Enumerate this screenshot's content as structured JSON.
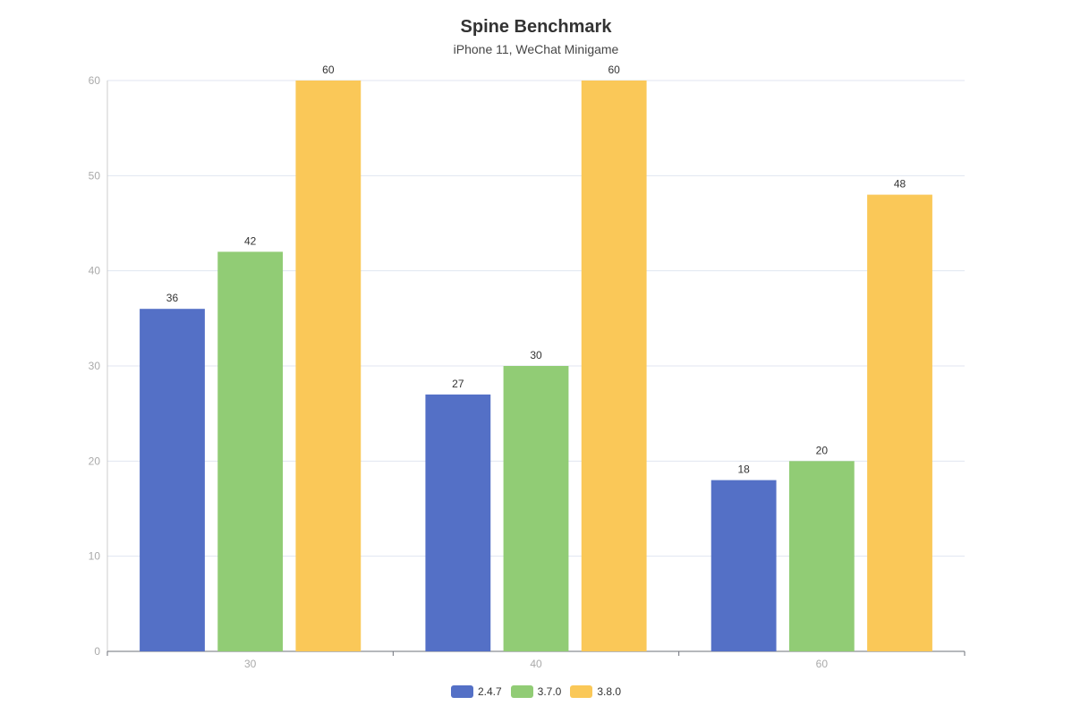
{
  "chart_data": {
    "type": "bar",
    "title": "Spine Benchmark",
    "subtitle": "iPhone 11, WeChat Minigame",
    "categories": [
      "30",
      "40",
      "60"
    ],
    "series": [
      {
        "name": "2.4.7",
        "values": [
          36,
          27,
          18
        ],
        "color": "#5470c6"
      },
      {
        "name": "3.7.0",
        "values": [
          42,
          30,
          20
        ],
        "color": "#91cc75"
      },
      {
        "name": "3.8.0",
        "values": [
          60,
          60,
          48
        ],
        "color": "#fac858"
      }
    ],
    "xlabel": "",
    "ylabel": "",
    "ylim": [
      0,
      60
    ],
    "yticks": [
      0,
      10,
      20,
      30,
      40,
      50,
      60
    ],
    "grid": true,
    "legend_position": "bottom-center",
    "data_labels": true
  }
}
